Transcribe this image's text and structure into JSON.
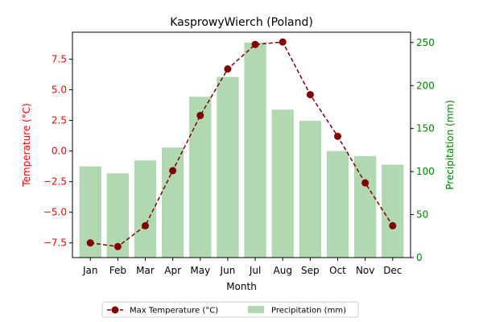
{
  "chart_data": {
    "type": "bar",
    "title": "KasprowyWierch (Poland)",
    "xlabel": "Month",
    "categories": [
      "Jan",
      "Feb",
      "Mar",
      "Apr",
      "May",
      "Jun",
      "Jul",
      "Aug",
      "Sep",
      "Oct",
      "Nov",
      "Dec"
    ],
    "left_axis": {
      "label": "Temperature (°C)",
      "ylim": [
        -8.7,
        9.7
      ],
      "ticks": [
        -7.5,
        -5.0,
        -2.5,
        0.0,
        2.5,
        5.0,
        7.5
      ],
      "tick_labels": [
        "−7.5",
        "−5.0",
        "−2.5",
        "0.0",
        "2.5",
        "5.0",
        "7.5"
      ],
      "color": "#ff0000"
    },
    "right_axis": {
      "label": "Precipitation (mm)",
      "ylim": [
        0,
        262
      ],
      "ticks": [
        0,
        50,
        100,
        150,
        200,
        250
      ],
      "tick_labels": [
        "0",
        "50",
        "100",
        "150",
        "200",
        "250"
      ],
      "color": "#008000"
    },
    "series": [
      {
        "name": "Max Temperature (°C)",
        "kind": "line",
        "axis": "left",
        "color": "#800000",
        "style": "dashed",
        "marker": "circle",
        "values": [
          -7.5,
          -7.8,
          -6.1,
          -1.6,
          2.9,
          6.7,
          8.7,
          8.9,
          4.6,
          1.2,
          -2.6,
          -6.1
        ]
      },
      {
        "name": "Precipitation (mm)",
        "kind": "bar",
        "axis": "right",
        "color": "#b2d8b2",
        "values": [
          106,
          98,
          113,
          128,
          187,
          210,
          250,
          172,
          159,
          124,
          118,
          108
        ]
      }
    ],
    "grid": false,
    "legend_placement": "bottom-center"
  }
}
